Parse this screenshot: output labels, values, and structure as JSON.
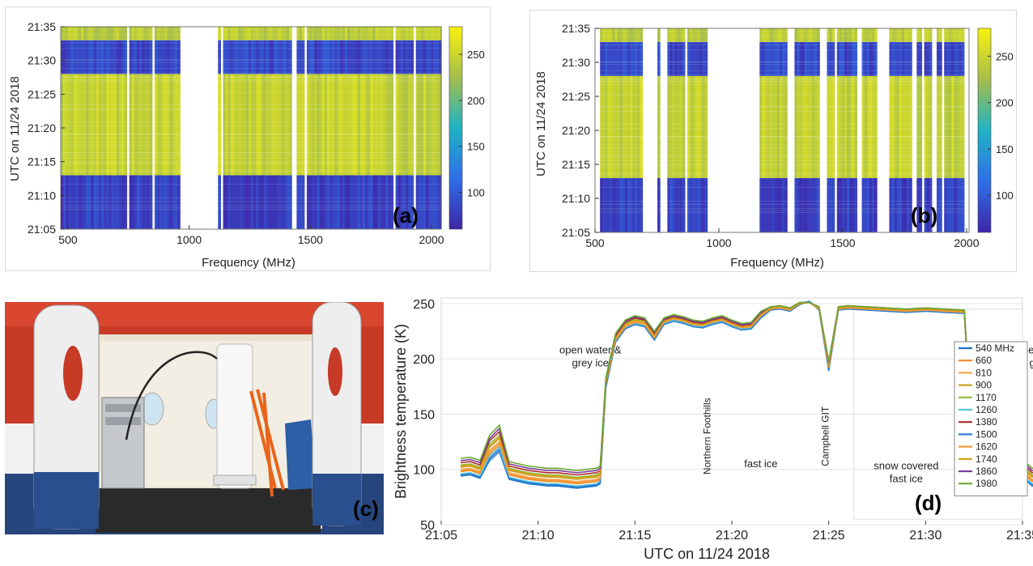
{
  "colors": {
    "parula_low": "#3e26a8",
    "parula_mid": "#1fb3c4",
    "parula_high": "#f8c43a",
    "tick": "#222222"
  },
  "panel_labels": {
    "a": "(a)",
    "b": "(b)",
    "c": "(c)",
    "d": "(d)"
  },
  "chart_data": [
    {
      "type": "heatmap",
      "panel": "a",
      "xlabel": "Frequency (MHz)",
      "ylabel": "UTC on 11/24 2018",
      "xlim": [
        470,
        2040
      ],
      "x_ticks": [
        "500",
        "1000",
        "1500",
        "2000"
      ],
      "y_ticks": [
        "21:05",
        "21:10",
        "21:15",
        "21:20",
        "21:25",
        "21:30",
        "21:35"
      ],
      "colorbar_ticks": [
        "100",
        "150",
        "200",
        "250"
      ],
      "colorbar_range": [
        60,
        280
      ],
      "values_by_time": [
        {
          "from": "21:05",
          "to": "21:13",
          "value": 80
        },
        {
          "from": "21:13",
          "to": "21:28",
          "value": 245
        },
        {
          "from": "21:28",
          "to": "21:33",
          "value": 85
        },
        {
          "from": "21:33",
          "to": "21:35",
          "value": 240
        }
      ],
      "blank_bands_mhz": [
        [
          965,
          1115
        ],
        [
          1425,
          1440
        ]
      ]
    },
    {
      "type": "heatmap",
      "panel": "b",
      "xlabel": "Frequency (MHz)",
      "ylabel": "UTC on 11/24 2018",
      "xlim": [
        500,
        2010
      ],
      "x_ticks": [
        "500",
        "1000",
        "1500",
        "2000"
      ],
      "y_ticks": [
        "21:05",
        "21:10",
        "21:15",
        "21:20",
        "21:25",
        "21:30",
        "21:35"
      ],
      "colorbar_ticks": [
        "100",
        "150",
        "200",
        "250"
      ],
      "colorbar_range": [
        60,
        280
      ],
      "values_by_time": [
        {
          "from": "21:05",
          "to": "21:13",
          "value": 80
        },
        {
          "from": "21:13",
          "to": "21:28",
          "value": 245
        },
        {
          "from": "21:28",
          "to": "21:33",
          "value": 85
        },
        {
          "from": "21:33",
          "to": "21:35",
          "value": 240
        }
      ],
      "data_bands_mhz": [
        [
          520,
          690
        ],
        [
          750,
          770
        ],
        [
          795,
          950
        ],
        [
          1160,
          1280
        ],
        [
          1310,
          1410
        ],
        [
          1440,
          1560
        ],
        [
          1580,
          1640
        ],
        [
          1690,
          1780
        ],
        [
          1800,
          1860
        ],
        [
          1880,
          1990
        ]
      ]
    },
    {
      "type": "line",
      "panel": "d",
      "xlabel": "UTC on 11/24 2018",
      "ylabel": "Brightness temperature (K)",
      "ylim": [
        50,
        255
      ],
      "x_ticks": [
        "21:05",
        "21:10",
        "21:15",
        "21:20",
        "21:25",
        "21:30",
        "21:35"
      ],
      "y_ticks": [
        "50",
        "100",
        "150",
        "200",
        "250"
      ],
      "legend_position": "right",
      "annotations": [
        {
          "text": "open water &\ngrey ice",
          "x": 7.7,
          "y": 205
        },
        {
          "text": "fast ice",
          "x": 16.5,
          "y": 102
        },
        {
          "text": "snow covered\nfast ice",
          "x": 24.0,
          "y": 100
        },
        {
          "text": "open water &\ngrey ice",
          "x": 31.3,
          "y": 205
        }
      ],
      "vertical_labels": [
        {
          "text": "Northern Foothills",
          "x": 13.9,
          "y": 130
        },
        {
          "text": "Campbell GIT",
          "x": 20.0,
          "y": 130
        }
      ],
      "x_minutes_after_2105": [
        1,
        1.5,
        2,
        2.5,
        3,
        3.5,
        4,
        4.5,
        5,
        5.5,
        6,
        6.5,
        7,
        7.5,
        8,
        8.2,
        8.5,
        9,
        9.5,
        10,
        10.5,
        11,
        11.5,
        12,
        12.5,
        13,
        13.5,
        14,
        14.5,
        15,
        15.5,
        16,
        16.5,
        17,
        17.5,
        18,
        18.5,
        19,
        19.5,
        20,
        20.5,
        21,
        22,
        23,
        24,
        25,
        26,
        27,
        27.5,
        28,
        28.5,
        29,
        29.5,
        30,
        30.5,
        31,
        31.5,
        32,
        32.5,
        33,
        33.5,
        34,
        34.5,
        35
      ],
      "series": [
        {
          "name": "540 MHz",
          "color": "#1f6fc5",
          "values": [
            95,
            96,
            93,
            110,
            118,
            92,
            90,
            88,
            87,
            86,
            86,
            85,
            84,
            85,
            86,
            88,
            175,
            216,
            228,
            232,
            230,
            218,
            232,
            235,
            233,
            230,
            229,
            232,
            234,
            230,
            227,
            228,
            238,
            245,
            246,
            244,
            250,
            252,
            245,
            190,
            245,
            246,
            245,
            244,
            243,
            244,
            243,
            242,
            88,
            90,
            87,
            92,
            86,
            94,
            86,
            88,
            95,
            82,
            155,
            160,
            190,
            235,
            238,
            232
          ]
        },
        {
          "name": "660",
          "color": "#f08a24",
          "values": [
            98,
            99,
            96,
            114,
            122,
            95,
            93,
            91,
            90,
            89,
            89,
            88,
            87,
            88,
            89,
            91,
            177,
            217,
            229,
            233,
            231,
            219,
            233,
            236,
            234,
            231,
            230,
            233,
            235,
            231,
            228,
            229,
            239,
            245,
            246,
            244,
            250,
            251,
            245,
            192,
            245,
            246,
            245,
            244,
            243,
            244,
            243,
            242,
            91,
            93,
            90,
            95,
            89,
            97,
            89,
            91,
            98,
            85,
            158,
            163,
            193,
            237,
            239,
            234
          ]
        },
        {
          "name": "810",
          "color": "#f4a94e",
          "values": [
            100,
            101,
            98,
            117,
            125,
            97,
            95,
            93,
            92,
            91,
            91,
            90,
            89,
            90,
            91,
            93,
            178,
            218,
            230,
            234,
            232,
            220,
            233,
            236,
            234,
            231,
            230,
            233,
            235,
            231,
            228,
            229,
            239,
            246,
            246,
            244,
            250,
            251,
            245,
            193,
            245,
            246,
            245,
            244,
            243,
            244,
            243,
            242,
            93,
            95,
            92,
            97,
            91,
            99,
            91,
            93,
            100,
            87,
            160,
            165,
            195,
            238,
            240,
            235
          ]
        },
        {
          "name": "900",
          "color": "#c9a227",
          "values": [
            102,
            103,
            100,
            120,
            128,
            99,
            97,
            95,
            94,
            93,
            93,
            92,
            91,
            92,
            93,
            95,
            179,
            219,
            231,
            235,
            233,
            221,
            234,
            237,
            235,
            232,
            231,
            234,
            236,
            232,
            229,
            230,
            240,
            246,
            247,
            245,
            250,
            251,
            246,
            194,
            246,
            247,
            246,
            245,
            244,
            245,
            244,
            243,
            95,
            97,
            94,
            99,
            93,
            101,
            93,
            95,
            102,
            89,
            162,
            167,
            197,
            239,
            241,
            236
          ]
        },
        {
          "name": "1170",
          "color": "#8cbf3f",
          "values": [
            104,
            105,
            102,
            123,
            131,
            101,
            99,
            97,
            96,
            95,
            95,
            94,
            93,
            94,
            95,
            97,
            180,
            220,
            232,
            236,
            234,
            222,
            234,
            237,
            235,
            232,
            231,
            234,
            236,
            232,
            229,
            230,
            240,
            246,
            247,
            245,
            250,
            251,
            246,
            195,
            246,
            247,
            246,
            245,
            244,
            245,
            244,
            243,
            97,
            99,
            96,
            101,
            95,
            103,
            95,
            97,
            104,
            91,
            164,
            169,
            199,
            240,
            242,
            237
          ]
        },
        {
          "name": "1260",
          "color": "#57c7e3",
          "values": [
            96,
            97,
            94,
            112,
            120,
            93,
            91,
            89,
            88,
            87,
            87,
            86,
            85,
            86,
            87,
            89,
            176,
            216,
            228,
            232,
            230,
            218,
            232,
            235,
            233,
            230,
            229,
            232,
            234,
            230,
            227,
            228,
            238,
            245,
            246,
            244,
            250,
            252,
            245,
            191,
            245,
            246,
            245,
            244,
            243,
            244,
            243,
            242,
            89,
            91,
            88,
            93,
            87,
            95,
            87,
            89,
            96,
            83,
            156,
            161,
            191,
            236,
            238,
            233
          ]
        },
        {
          "name": "1380",
          "color": "#b02a2a",
          "values": [
            106,
            107,
            104,
            126,
            134,
            103,
            101,
            99,
            98,
            97,
            97,
            96,
            95,
            96,
            97,
            99,
            181,
            221,
            233,
            237,
            235,
            223,
            235,
            238,
            236,
            233,
            232,
            235,
            237,
            233,
            230,
            231,
            241,
            247,
            247,
            245,
            250,
            251,
            246,
            196,
            246,
            247,
            246,
            245,
            244,
            245,
            244,
            243,
            99,
            101,
            98,
            103,
            97,
            105,
            97,
            99,
            106,
            93,
            166,
            171,
            201,
            241,
            243,
            238
          ]
        },
        {
          "name": "1500",
          "color": "#2b7fd0",
          "values": [
            94,
            95,
            92,
            108,
            116,
            91,
            89,
            87,
            86,
            85,
            85,
            84,
            83,
            84,
            85,
            87,
            174,
            215,
            227,
            231,
            229,
            217,
            231,
            234,
            232,
            229,
            228,
            231,
            233,
            229,
            226,
            227,
            237,
            244,
            245,
            243,
            249,
            252,
            244,
            189,
            244,
            245,
            244,
            243,
            242,
            243,
            242,
            241,
            87,
            89,
            86,
            91,
            85,
            93,
            85,
            87,
            94,
            81,
            154,
            159,
            189,
            234,
            237,
            231
          ]
        },
        {
          "name": "1620",
          "color": "#f39a3a",
          "values": [
            99,
            100,
            97,
            116,
            124,
            96,
            94,
            92,
            91,
            90,
            90,
            89,
            88,
            89,
            90,
            92,
            178,
            217,
            229,
            233,
            231,
            219,
            233,
            236,
            234,
            231,
            230,
            233,
            235,
            231,
            228,
            229,
            239,
            245,
            246,
            244,
            250,
            251,
            245,
            192,
            245,
            246,
            245,
            244,
            243,
            244,
            243,
            242,
            92,
            94,
            91,
            96,
            90,
            98,
            90,
            92,
            99,
            86,
            159,
            164,
            194,
            237,
            239,
            234
          ]
        },
        {
          "name": "1740",
          "color": "#d4a017",
          "values": [
            103,
            104,
            101,
            121,
            129,
            100,
            98,
            96,
            95,
            94,
            94,
            93,
            92,
            93,
            94,
            96,
            179,
            219,
            231,
            235,
            233,
            221,
            234,
            237,
            235,
            232,
            231,
            234,
            236,
            232,
            229,
            230,
            240,
            246,
            247,
            245,
            250,
            251,
            246,
            194,
            246,
            247,
            246,
            245,
            244,
            245,
            244,
            243,
            96,
            98,
            95,
            100,
            94,
            102,
            94,
            96,
            103,
            90,
            163,
            168,
            198,
            239,
            241,
            236
          ]
        },
        {
          "name": "1860",
          "color": "#7b3f9e",
          "values": [
            108,
            109,
            106,
            128,
            137,
            105,
            103,
            101,
            100,
            99,
            99,
            98,
            97,
            98,
            99,
            101,
            182,
            222,
            234,
            238,
            236,
            224,
            236,
            239,
            237,
            234,
            233,
            236,
            238,
            234,
            231,
            232,
            242,
            247,
            248,
            246,
            251,
            251,
            247,
            197,
            247,
            248,
            247,
            246,
            245,
            246,
            245,
            244,
            101,
            103,
            100,
            105,
            99,
            107,
            99,
            101,
            108,
            95,
            168,
            173,
            203,
            242,
            244,
            239
          ]
        },
        {
          "name": "1980",
          "color": "#6aaa2e",
          "values": [
            110,
            111,
            108,
            131,
            140,
            107,
            105,
            103,
            102,
            101,
            101,
            100,
            99,
            100,
            101,
            103,
            183,
            223,
            235,
            239,
            237,
            225,
            237,
            240,
            238,
            235,
            234,
            237,
            239,
            235,
            232,
            233,
            243,
            247,
            248,
            246,
            251,
            251,
            247,
            198,
            247,
            248,
            247,
            246,
            245,
            246,
            245,
            244,
            103,
            105,
            102,
            107,
            101,
            109,
            101,
            103,
            110,
            97,
            170,
            175,
            205,
            243,
            245,
            240
          ]
        }
      ]
    }
  ]
}
